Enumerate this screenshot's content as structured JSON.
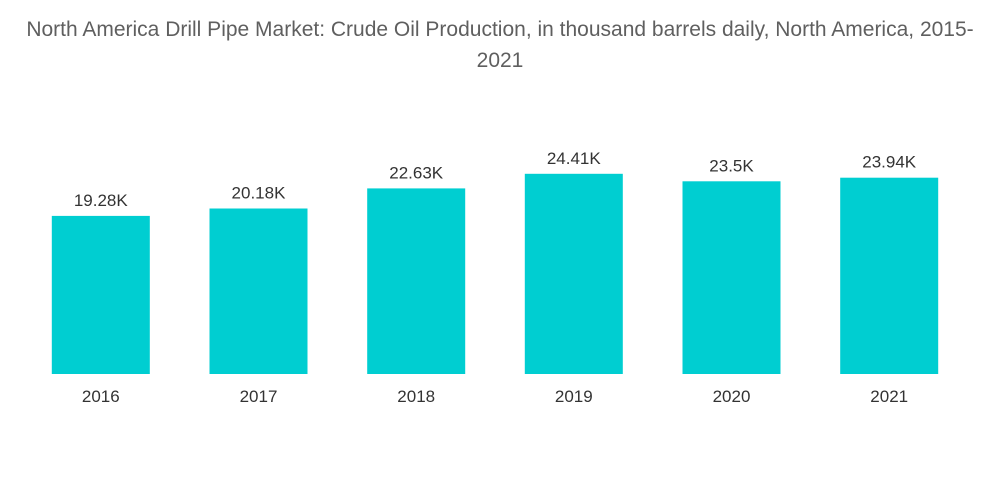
{
  "chart_data": {
    "type": "bar",
    "title": "North America Drill Pipe Market: Crude Oil Production, in thousand barrels daily, North America, 2015-2021",
    "categories": [
      "2016",
      "2017",
      "2018",
      "2019",
      "2020",
      "2021"
    ],
    "values": [
      19.28,
      20.18,
      22.63,
      24.41,
      23.5,
      23.94
    ],
    "data_labels": [
      "19.28K",
      "20.18K",
      "22.63K",
      "24.41K",
      "23.5K",
      "23.94K"
    ],
    "xlabel": "",
    "ylabel": "",
    "ylim": [
      0,
      30
    ],
    "grid": false,
    "legend": "none",
    "bar_color": "#00ced1"
  }
}
